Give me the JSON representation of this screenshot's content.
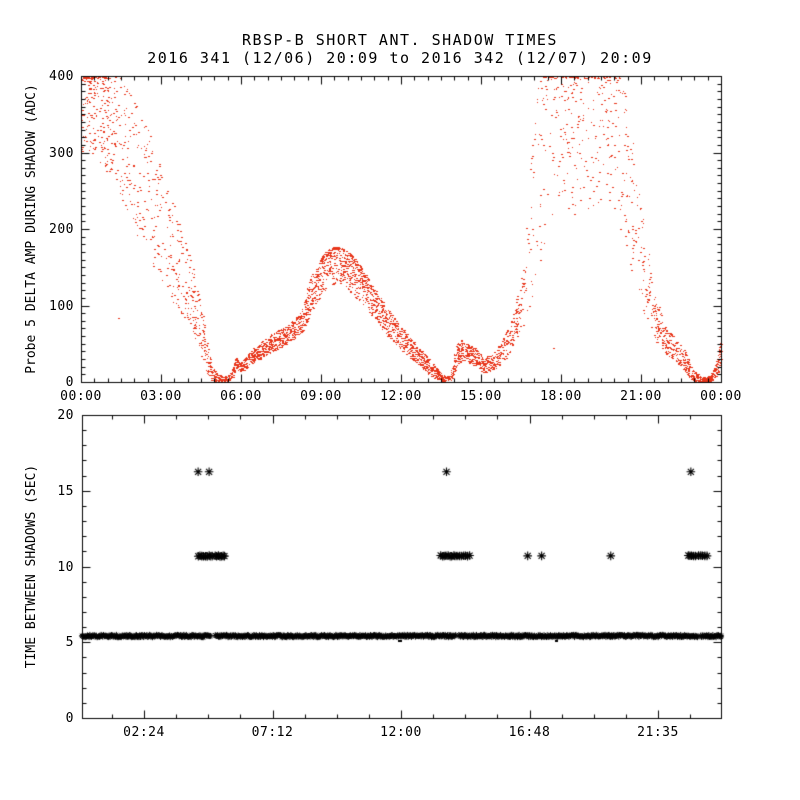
{
  "chart_data": [
    {
      "id": "top-panel",
      "type": "scatter",
      "marker": "dot",
      "title": "RBSP-B SHORT ANT. SHADOW TIMES",
      "subtitle": "2016 341 (12/06) 20:09 to 2016 342 (12/07) 20:09",
      "ylabel": "Probe 5 DELTA AMP DURING SHADOW (ADC)",
      "xlabel": "",
      "point_color": "#e8351a",
      "xlim_hours": [
        0,
        24
      ],
      "ylim": [
        0,
        400
      ],
      "x_tick_labels": [
        "00:00",
        "03:00",
        "06:00",
        "09:00",
        "12:00",
        "15:00",
        "18:00",
        "21:00",
        "00:00"
      ],
      "x_tick_hours": [
        0,
        3,
        6,
        9,
        12,
        15,
        18,
        21,
        24
      ],
      "x_minor_step_hours": 0.5,
      "y_ticks": [
        0,
        100,
        200,
        300,
        400
      ],
      "y_minor_step": 10,
      "grid": false,
      "n_points": 4200,
      "seed": 42,
      "envelope_t_lo_hi_density_bias": [
        [
          0.0,
          300,
          412,
          3.2,
          "h"
        ],
        [
          0.45,
          295,
          412,
          3.0,
          "h"
        ],
        [
          0.8,
          280,
          412,
          2.6,
          "h"
        ],
        [
          1.1,
          265,
          405,
          2.0,
          "u"
        ],
        [
          1.5,
          240,
          400,
          1.5,
          "u"
        ],
        [
          1.9,
          205,
          375,
          1.2,
          "u"
        ],
        [
          2.3,
          175,
          350,
          1.1,
          "u"
        ],
        [
          2.7,
          145,
          315,
          1.0,
          "u"
        ],
        [
          3.1,
          120,
          270,
          1.1,
          "u"
        ],
        [
          3.4,
          105,
          240,
          1.3,
          "u"
        ],
        [
          3.7,
          90,
          205,
          1.4,
          "u"
        ],
        [
          4.0,
          75,
          175,
          1.5,
          "u"
        ],
        [
          4.25,
          60,
          140,
          1.7,
          "u"
        ],
        [
          4.5,
          35,
          100,
          2.0,
          "u"
        ],
        [
          4.7,
          15,
          60,
          2.6,
          "l"
        ],
        [
          4.9,
          2,
          25,
          3.0,
          "l"
        ],
        [
          5.1,
          0,
          10,
          2.6,
          "u"
        ],
        [
          5.4,
          0,
          8,
          2.2,
          "u"
        ],
        [
          5.65,
          2,
          14,
          2.4,
          "u"
        ],
        [
          5.8,
          18,
          34,
          3.0,
          "u"
        ],
        [
          5.95,
          12,
          24,
          2.6,
          "u"
        ],
        [
          6.1,
          16,
          30,
          2.6,
          "u"
        ],
        [
          6.4,
          24,
          42,
          2.8,
          "u"
        ],
        [
          6.8,
          32,
          54,
          2.8,
          "u"
        ],
        [
          7.2,
          40,
          64,
          2.9,
          "u"
        ],
        [
          7.6,
          48,
          72,
          3.0,
          "u"
        ],
        [
          8.0,
          56,
          82,
          3.0,
          "u"
        ],
        [
          8.3,
          66,
          96,
          3.1,
          "u"
        ],
        [
          8.6,
          92,
          138,
          3.3,
          "u"
        ],
        [
          8.9,
          108,
          156,
          3.4,
          "h"
        ],
        [
          9.15,
          120,
          170,
          3.5,
          "h"
        ],
        [
          9.4,
          126,
          176,
          3.5,
          "h"
        ],
        [
          9.65,
          128,
          177,
          3.5,
          "h"
        ],
        [
          9.9,
          124,
          173,
          3.5,
          "h"
        ],
        [
          10.15,
          116,
          166,
          3.4,
          "h"
        ],
        [
          10.45,
          104,
          152,
          3.3,
          "h"
        ],
        [
          10.8,
          90,
          134,
          3.2,
          "u"
        ],
        [
          11.2,
          72,
          112,
          3.0,
          "u"
        ],
        [
          11.6,
          56,
          92,
          2.9,
          "u"
        ],
        [
          12.0,
          42,
          72,
          2.8,
          "u"
        ],
        [
          12.4,
          30,
          56,
          2.8,
          "u"
        ],
        [
          12.8,
          17,
          40,
          2.7,
          "u"
        ],
        [
          13.2,
          5,
          24,
          2.7,
          "u"
        ],
        [
          13.55,
          0,
          10,
          2.6,
          "u"
        ],
        [
          13.85,
          0,
          8,
          2.4,
          "u"
        ],
        [
          14.05,
          18,
          48,
          2.6,
          "u"
        ],
        [
          14.25,
          28,
          56,
          2.8,
          "u"
        ],
        [
          14.5,
          26,
          50,
          2.8,
          "u"
        ],
        [
          14.8,
          20,
          44,
          2.6,
          "u"
        ],
        [
          15.1,
          12,
          32,
          2.3,
          "u"
        ],
        [
          15.4,
          14,
          36,
          2.3,
          "u"
        ],
        [
          15.7,
          22,
          50,
          2.2,
          "u"
        ],
        [
          16.0,
          35,
          70,
          2.0,
          "u"
        ],
        [
          16.3,
          55,
          105,
          1.6,
          "u"
        ],
        [
          16.6,
          75,
          165,
          1.3,
          "u"
        ],
        [
          16.9,
          95,
          330,
          1.1,
          "u"
        ],
        [
          17.2,
          150,
          412,
          1.2,
          "h"
        ],
        [
          17.6,
          215,
          412,
          1.3,
          "h"
        ],
        [
          18.1,
          215,
          412,
          1.4,
          "h"
        ],
        [
          18.6,
          220,
          412,
          1.4,
          "h"
        ],
        [
          19.1,
          228,
          412,
          1.4,
          "h"
        ],
        [
          19.6,
          238,
          412,
          1.3,
          "h"
        ],
        [
          19.95,
          225,
          412,
          1.2,
          "h"
        ],
        [
          20.25,
          195,
          400,
          1.1,
          "u"
        ],
        [
          20.55,
          150,
          345,
          1.1,
          "u"
        ],
        [
          20.85,
          115,
          285,
          1.1,
          "u"
        ],
        [
          21.15,
          85,
          210,
          1.2,
          "u"
        ],
        [
          21.45,
          60,
          120,
          1.7,
          "u"
        ],
        [
          21.7,
          45,
          95,
          2.2,
          "u"
        ],
        [
          21.95,
          36,
          72,
          2.4,
          "u"
        ],
        [
          22.25,
          28,
          58,
          2.4,
          "u"
        ],
        [
          22.55,
          18,
          45,
          2.4,
          "u"
        ],
        [
          22.8,
          6,
          28,
          2.5,
          "l"
        ],
        [
          23.05,
          0,
          12,
          2.5,
          "u"
        ],
        [
          23.35,
          0,
          7,
          2.4,
          "u"
        ],
        [
          23.6,
          0,
          9,
          2.4,
          "u"
        ],
        [
          23.8,
          6,
          24,
          2.8,
          "u"
        ],
        [
          24.0,
          20,
          58,
          3.2,
          "u"
        ]
      ],
      "extra_points_t_v": [
        [
          1.39,
          84
        ],
        [
          4.09,
          77
        ],
        [
          4.39,
          61
        ],
        [
          17.7,
          44
        ]
      ]
    },
    {
      "id": "bottom-panel",
      "type": "scatter",
      "marker": "asterisk",
      "point_color": "#000000",
      "ylabel": "TIME BETWEEN SHADOWS (SEC)",
      "xlabel": "",
      "ylim": [
        0,
        20
      ],
      "x_tick_labels": [
        "02:24",
        "07:12",
        "12:00",
        "16:48",
        "21:35"
      ],
      "x_tick_hours": [
        2.4,
        7.196,
        11.992,
        16.788,
        21.583
      ],
      "x_minor_step_hours": 1.199,
      "xlim_hours": [
        0.08,
        23.97
      ],
      "y_ticks": [
        0,
        5,
        10,
        15,
        20
      ],
      "y_minor_step": 1,
      "grid": false,
      "band_row": {
        "value": 5.41,
        "start": 0.08,
        "end": 23.97,
        "gaps": [
          [
            4.9,
            5.05
          ],
          [
            14.03,
            14.14
          ],
          [
            23.07,
            23.18
          ]
        ]
      },
      "mid_row": {
        "value": 10.7,
        "clusters_t0_t1_n": [
          [
            4.42,
            4.95,
            9
          ],
          [
            5.07,
            5.4,
            7
          ],
          [
            13.47,
            13.95,
            8
          ],
          [
            14.02,
            14.55,
            8
          ],
          [
            22.72,
            22.98,
            5
          ],
          [
            23.09,
            23.4,
            5
          ]
        ],
        "singles_t": [
          16.72,
          17.24,
          19.82
        ]
      },
      "top_row": {
        "value": 16.25,
        "singles_t": [
          4.42,
          4.83,
          13.69,
          22.81
        ]
      },
      "low_dots": {
        "value": 5.15,
        "times_t": [
          11.93,
          11.99,
          17.77,
          17.83
        ]
      }
    }
  ]
}
